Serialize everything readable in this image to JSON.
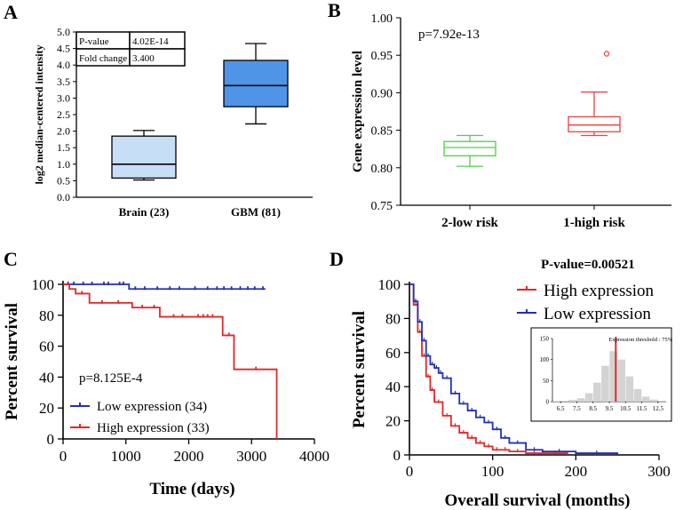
{
  "chart_data": [
    {
      "panel": "A",
      "type": "box",
      "ylabel": "log2 median-centered intensity",
      "ylim": [
        0,
        5
      ],
      "yticks": [
        "0.0",
        "0.5",
        "1.0",
        "1.5",
        "2.0",
        "2.5",
        "3.0",
        "3.5",
        "4.0",
        "4.5",
        "5.0"
      ],
      "categories": [
        "Brain (23)",
        "GBM (81)"
      ],
      "boxes": [
        {
          "min": 0.52,
          "q1": 0.58,
          "median": 1.0,
          "q3": 1.85,
          "max": 2.02,
          "color": "#c6def6"
        },
        {
          "min": 2.22,
          "q1": 2.74,
          "median": 3.38,
          "q3": 4.14,
          "max": 4.65,
          "color": "#4f94e6"
        }
      ],
      "table": [
        {
          "label": "P-value",
          "value": "4.02E-14"
        },
        {
          "label": "Fold change",
          "value": "3.400"
        }
      ]
    },
    {
      "panel": "B",
      "type": "box",
      "ylabel": "Gene expression level",
      "ylim": [
        0.75,
        1.0
      ],
      "yticks": [
        "0.75",
        "0.80",
        "0.85",
        "0.90",
        "0.95",
        "1.00"
      ],
      "categories": [
        "2-low risk",
        "1-high risk"
      ],
      "annotation": "p=7.92e-13",
      "boxes": [
        {
          "min": 0.802,
          "q1": 0.816,
          "median": 0.827,
          "q3": 0.835,
          "max": 0.843,
          "color": "#4bd14b"
        },
        {
          "min": 0.843,
          "q1": 0.848,
          "median": 0.857,
          "q3": 0.868,
          "max": 0.901,
          "outlier": 0.952,
          "color": "#e84343"
        }
      ]
    },
    {
      "panel": "C",
      "type": "line",
      "xlabel": "Time (days)",
      "ylabel": "Percent survival",
      "xlim": [
        0,
        4000
      ],
      "ylim": [
        0,
        100
      ],
      "xticks": [
        "0",
        "1000",
        "2000",
        "3000",
        "4000"
      ],
      "yticks": [
        "0",
        "20",
        "40",
        "60",
        "80",
        "100"
      ],
      "annotation": "p=8.125E-4",
      "series": [
        {
          "name": "Low expression (34)",
          "color": "#2230b4",
          "x": [
            0,
            1050,
            1050,
            3220
          ],
          "y": [
            100,
            100,
            97,
            97
          ],
          "censors": [
            [
              80,
              100
            ],
            [
              170,
              100
            ],
            [
              320,
              100
            ],
            [
              460,
              100
            ],
            [
              650,
              100
            ],
            [
              720,
              100
            ],
            [
              900,
              100
            ],
            [
              960,
              100
            ],
            [
              1150,
              97
            ],
            [
              1300,
              97
            ],
            [
              1500,
              97
            ],
            [
              1700,
              97
            ],
            [
              1850,
              97
            ],
            [
              2100,
              97
            ],
            [
              2300,
              97
            ],
            [
              2450,
              97
            ],
            [
              2560,
              97
            ],
            [
              2680,
              97
            ],
            [
              2820,
              97
            ],
            [
              2940,
              97
            ],
            [
              3050,
              97
            ],
            [
              3180,
              97
            ]
          ]
        },
        {
          "name": "High expression (33)",
          "color": "#e02828",
          "x": [
            0,
            100,
            100,
            200,
            200,
            420,
            420,
            1100,
            1100,
            1540,
            1540,
            2540,
            2540,
            2720,
            2720,
            3400,
            3400
          ],
          "y": [
            100,
            100,
            97,
            97,
            94,
            94,
            88,
            88,
            85,
            85,
            79,
            79,
            67,
            67,
            45,
            45,
            0
          ],
          "censors": [
            [
              300,
              94
            ],
            [
              620,
              88
            ],
            [
              880,
              88
            ],
            [
              1260,
              85
            ],
            [
              1450,
              85
            ],
            [
              1760,
              79
            ],
            [
              1900,
              79
            ],
            [
              2150,
              79
            ],
            [
              2230,
              79
            ],
            [
              2300,
              79
            ],
            [
              2380,
              79
            ],
            [
              2640,
              67
            ],
            [
              3070,
              45
            ]
          ]
        }
      ]
    },
    {
      "panel": "D",
      "type": "line",
      "xlabel": "Overall survival (months)",
      "ylabel": "Percent survival",
      "xlim": [
        0,
        300
      ],
      "ylim": [
        0,
        100
      ],
      "xticks": [
        "0",
        "100",
        "200",
        "300"
      ],
      "yticks": [
        "0",
        "20",
        "40",
        "60",
        "80",
        "100"
      ],
      "annotation": "P-value=0.00521",
      "series": [
        {
          "name": "High expression",
          "color": "#e02828",
          "x": [
            0,
            5,
            10,
            15,
            20,
            25,
            30,
            40,
            50,
            60,
            70,
            80,
            90,
            100,
            110,
            120,
            140,
            160,
            190
          ],
          "y": [
            100,
            88,
            72,
            58,
            46,
            38,
            31,
            23,
            17,
            13,
            10,
            7,
            5,
            3,
            3,
            2,
            1,
            1,
            0
          ]
        },
        {
          "name": "Low expression",
          "color": "#2230b4",
          "x": [
            0,
            5,
            10,
            15,
            20,
            25,
            30,
            35,
            40,
            50,
            60,
            70,
            80,
            90,
            100,
            110,
            120,
            140,
            160,
            200,
            250
          ],
          "y": [
            100,
            90,
            78,
            67,
            58,
            53,
            51,
            48,
            45,
            36,
            30,
            26,
            22,
            19,
            15,
            10,
            7,
            3,
            2,
            1,
            0
          ]
        }
      ],
      "inset": {
        "type": "histogram",
        "label": "Expression threshold : 75%",
        "threshold": 9.9,
        "xticks": [
          "6.5",
          "7.5",
          "8.5",
          "9.5",
          "10.5",
          "11.5",
          "12.5"
        ],
        "yticks": [
          "0",
          "50",
          "100",
          "150"
        ],
        "ylim": [
          0,
          150
        ],
        "bins": [
          [
            6.25,
            1
          ],
          [
            6.75,
            2
          ],
          [
            7.25,
            4
          ],
          [
            7.75,
            8
          ],
          [
            8.25,
            20
          ],
          [
            8.75,
            45
          ],
          [
            9.25,
            85
          ],
          [
            9.75,
            120
          ],
          [
            10.25,
            100
          ],
          [
            10.75,
            60
          ],
          [
            11.25,
            30
          ],
          [
            11.75,
            12
          ],
          [
            12.25,
            5
          ],
          [
            12.75,
            2
          ]
        ]
      }
    }
  ]
}
